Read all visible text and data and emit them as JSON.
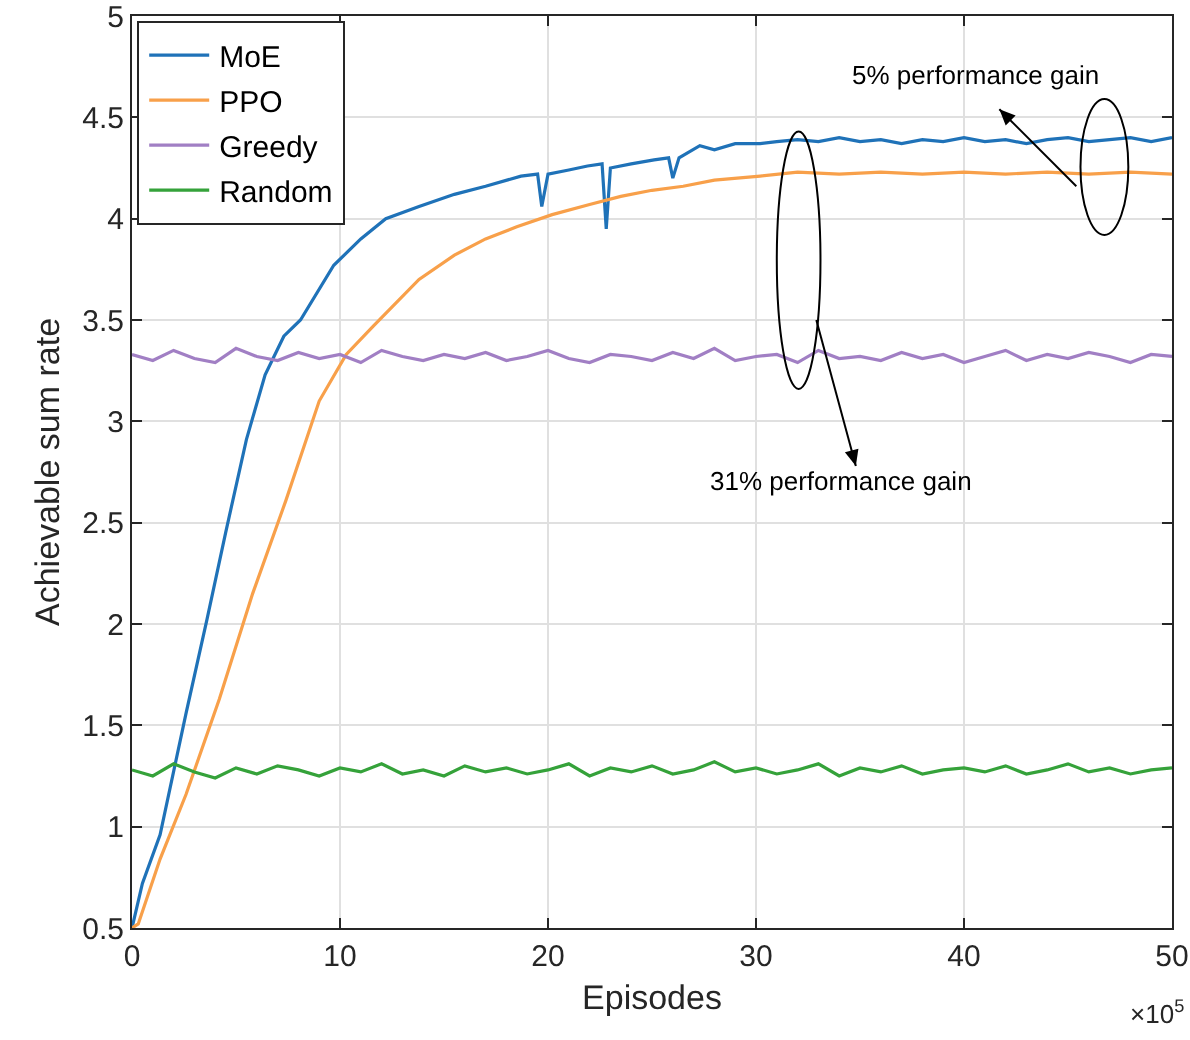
{
  "chart_data": {
    "type": "line",
    "xlabel": "Episodes",
    "ylabel": "Achievable sum rate",
    "xlim": [
      0,
      50
    ],
    "xticks": [
      0,
      10,
      20,
      30,
      40,
      50
    ],
    "ylim": [
      0.5,
      5
    ],
    "yticks": [
      0.5,
      1,
      1.5,
      2,
      2.5,
      3,
      3.5,
      4,
      4.5,
      5
    ],
    "grid": true,
    "legend": "top left",
    "line_style": "solid",
    "marker": "none",
    "annotations": [
      "5% performance gain",
      "31% performance gain",
      "×10$^{5}$"
    ],
    "series": [
      {
        "name": "MoE",
        "color": "#1f72b8",
        "x": [
          0,
          0.5,
          1.35,
          2.6,
          3.6,
          4.5,
          5.5,
          6.4,
          7.3,
          8.1,
          9.7,
          11,
          12.2,
          13.8,
          15.5,
          17,
          18.7,
          19.5,
          19.7,
          20,
          21,
          21.9,
          22.6,
          22.8,
          23,
          24,
          25.1,
          25.8,
          26,
          26.3,
          27.3,
          28,
          29,
          30.2,
          31,
          32,
          33,
          34,
          35,
          36,
          37,
          38,
          39,
          40,
          41,
          42,
          43,
          44,
          45,
          46,
          47,
          48,
          49,
          50
        ],
        "values": [
          0.5,
          0.72,
          0.96,
          1.56,
          2.02,
          2.45,
          2.91,
          3.23,
          3.42,
          3.5,
          3.77,
          3.9,
          4.0,
          4.06,
          4.12,
          4.16,
          4.21,
          4.22,
          4.06,
          4.22,
          4.24,
          4.26,
          4.27,
          3.95,
          4.25,
          4.27,
          4.29,
          4.3,
          4.2,
          4.3,
          4.36,
          4.34,
          4.37,
          4.37,
          4.38,
          4.39,
          4.38,
          4.4,
          4.38,
          4.39,
          4.37,
          4.39,
          4.38,
          4.4,
          4.38,
          4.39,
          4.37,
          4.39,
          4.4,
          4.38,
          4.39,
          4.4,
          4.38,
          4.4
        ]
      },
      {
        "name": "PPO",
        "color": "#f8a04a",
        "x": [
          0,
          0.3,
          1.35,
          2.6,
          4.2,
          5.8,
          7.4,
          9.0,
          10.3,
          11.6,
          13.8,
          15.5,
          17,
          18.5,
          20.2,
          22,
          23.5,
          25,
          26.5,
          28,
          30.2,
          32,
          34,
          36,
          38,
          40,
          42,
          44,
          46,
          48,
          50
        ],
        "values": [
          0.5,
          0.52,
          0.84,
          1.16,
          1.63,
          2.15,
          2.61,
          3.1,
          3.33,
          3.47,
          3.7,
          3.82,
          3.9,
          3.96,
          4.02,
          4.07,
          4.11,
          4.14,
          4.16,
          4.19,
          4.21,
          4.23,
          4.22,
          4.23,
          4.22,
          4.23,
          4.22,
          4.23,
          4.22,
          4.23,
          4.22
        ]
      },
      {
        "name": "Greedy",
        "color": "#a17fc4",
        "x": [
          0,
          1,
          2,
          3,
          4,
          5,
          6,
          7,
          8,
          9,
          10,
          11,
          12,
          13,
          14,
          15,
          16,
          17,
          18,
          19,
          20,
          21,
          22,
          23,
          24,
          25,
          26,
          27,
          28,
          29,
          30,
          31,
          32,
          33,
          34,
          35,
          36,
          37,
          38,
          39,
          40,
          41,
          42,
          43,
          44,
          45,
          46,
          47,
          48,
          49,
          50
        ],
        "values": [
          3.33,
          3.3,
          3.35,
          3.31,
          3.29,
          3.36,
          3.32,
          3.3,
          3.34,
          3.31,
          3.33,
          3.29,
          3.35,
          3.32,
          3.3,
          3.33,
          3.31,
          3.34,
          3.3,
          3.32,
          3.35,
          3.31,
          3.29,
          3.33,
          3.32,
          3.3,
          3.34,
          3.31,
          3.36,
          3.3,
          3.32,
          3.33,
          3.29,
          3.35,
          3.31,
          3.32,
          3.3,
          3.34,
          3.31,
          3.33,
          3.29,
          3.32,
          3.35,
          3.3,
          3.33,
          3.31,
          3.34,
          3.32,
          3.29,
          3.33,
          3.32
        ]
      },
      {
        "name": "Random",
        "color": "#35a23a",
        "x": [
          0,
          1,
          2,
          3,
          4,
          5,
          6,
          7,
          8,
          9,
          10,
          11,
          12,
          13,
          14,
          15,
          16,
          17,
          18,
          19,
          20,
          21,
          22,
          23,
          24,
          25,
          26,
          27,
          28,
          29,
          30,
          31,
          32,
          33,
          34,
          35,
          36,
          37,
          38,
          39,
          40,
          41,
          42,
          43,
          44,
          45,
          46,
          47,
          48,
          49,
          50
        ],
        "values": [
          1.28,
          1.25,
          1.31,
          1.27,
          1.24,
          1.29,
          1.26,
          1.3,
          1.28,
          1.25,
          1.29,
          1.27,
          1.31,
          1.26,
          1.28,
          1.25,
          1.3,
          1.27,
          1.29,
          1.26,
          1.28,
          1.31,
          1.25,
          1.29,
          1.27,
          1.3,
          1.26,
          1.28,
          1.32,
          1.27,
          1.29,
          1.26,
          1.28,
          1.31,
          1.25,
          1.29,
          1.27,
          1.3,
          1.26,
          1.28,
          1.29,
          1.27,
          1.3,
          1.26,
          1.28,
          1.31,
          1.27,
          1.29,
          1.26,
          1.28,
          1.29
        ]
      }
    ]
  }
}
